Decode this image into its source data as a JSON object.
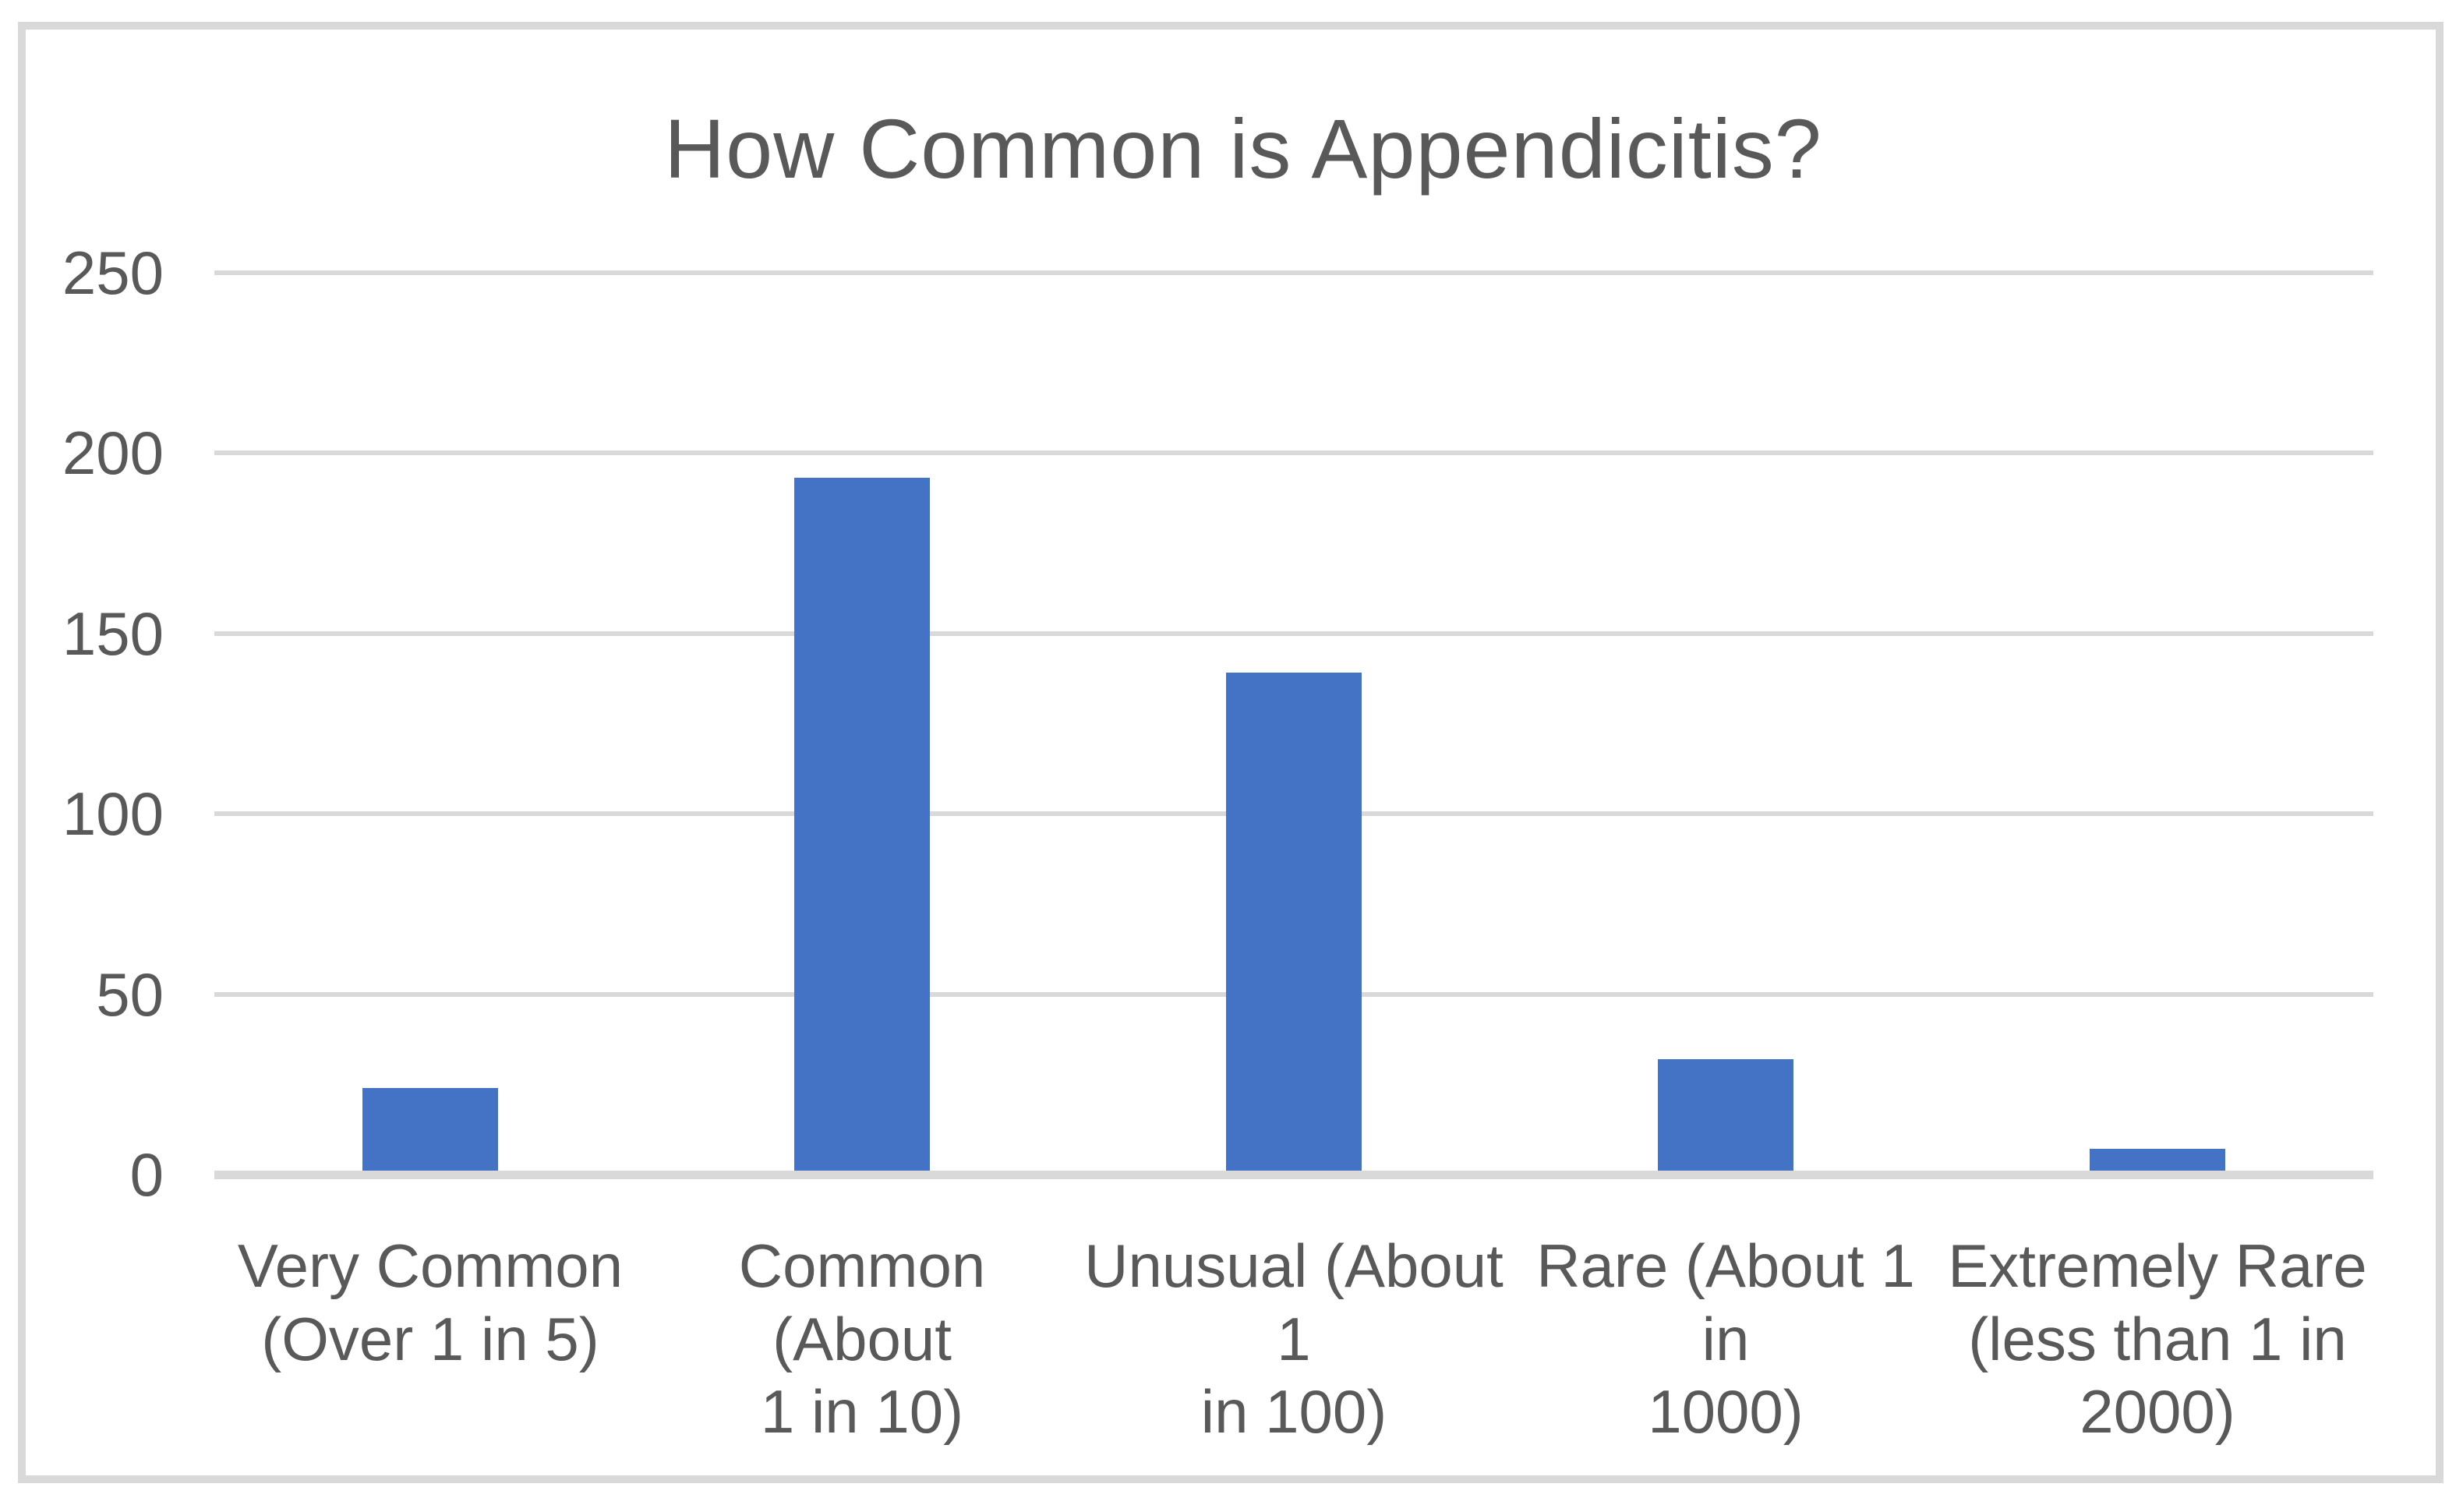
{
  "chart_data": {
    "type": "bar",
    "title": "How Common is Appendicitis?",
    "categories": [
      "Very Common (Over 1 in 5)",
      "Common (About 1 in 10)",
      "Unusual (About 1 in 100)",
      "Rare (About 1 in 1000)",
      "Extremely Rare (less than 1 in 2000)"
    ],
    "categories_lines": [
      [
        "Very Common",
        "(Over 1 in 5)"
      ],
      [
        "Common (About",
        "1 in 10)"
      ],
      [
        "Unusual (About 1",
        "in 100)"
      ],
      [
        "Rare (About 1 in",
        "1000)"
      ],
      [
        "Extremely Rare",
        "(less than 1 in",
        "2000)"
      ]
    ],
    "values": [
      23,
      192,
      138,
      31,
      6
    ],
    "xlabel": "",
    "ylabel": "",
    "ylim": [
      0,
      250
    ],
    "yticks": [
      250,
      200,
      150,
      100,
      50,
      0
    ],
    "grid": true,
    "legend_position": "none",
    "colors": {
      "bar": "#4472c4",
      "gridline": "#d9d9d9",
      "axis": "#d9d9d9",
      "text": "#595959",
      "frame_border": "#d9d9d9",
      "background": "#ffffff"
    }
  }
}
